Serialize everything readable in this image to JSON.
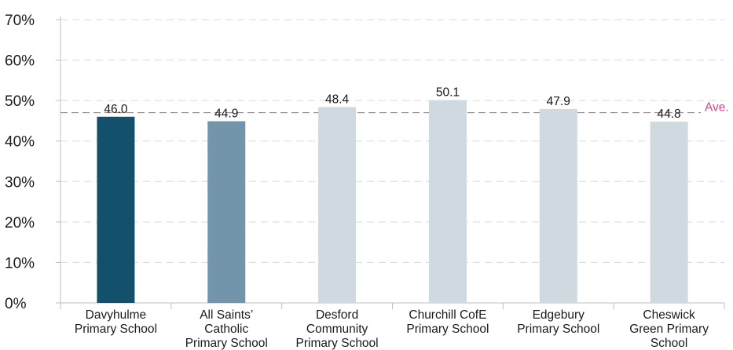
{
  "chart_data": {
    "type": "bar",
    "categories": [
      [
        "Davyhulme",
        "Primary School"
      ],
      [
        "All Saints’",
        "Catholic",
        "Primary School"
      ],
      [
        "Desford",
        "Community",
        "Primary School"
      ],
      [
        "Churchill CofE",
        "Primary School"
      ],
      [
        "Edgebury",
        "Primary School"
      ],
      [
        "Cheswick",
        "Green Primary",
        "School"
      ]
    ],
    "values": [
      46.0,
      44.9,
      48.4,
      50.1,
      47.9,
      44.8
    ],
    "value_labels": [
      "46.0",
      "44.9",
      "48.4",
      "50.1",
      "47.9",
      "44.8"
    ],
    "bar_colors": [
      "#12506b",
      "#7295ac",
      "#ced9e0",
      "#ced9e0",
      "#ced9e0",
      "#ced9e0"
    ],
    "ylim": [
      0,
      70
    ],
    "y_ticks": [
      0,
      10,
      20,
      30,
      40,
      50,
      60,
      70
    ],
    "y_tick_labels": [
      "0%",
      "10%",
      "20%",
      "30%",
      "40%",
      "50%",
      "60%",
      "70%"
    ],
    "reference_line": {
      "value": 47.0,
      "label": "Ave.",
      "color": "#e0408a"
    },
    "grid": true,
    "grid_color": "#d9d9d9",
    "title": "",
    "xlabel": "",
    "ylabel": ""
  }
}
